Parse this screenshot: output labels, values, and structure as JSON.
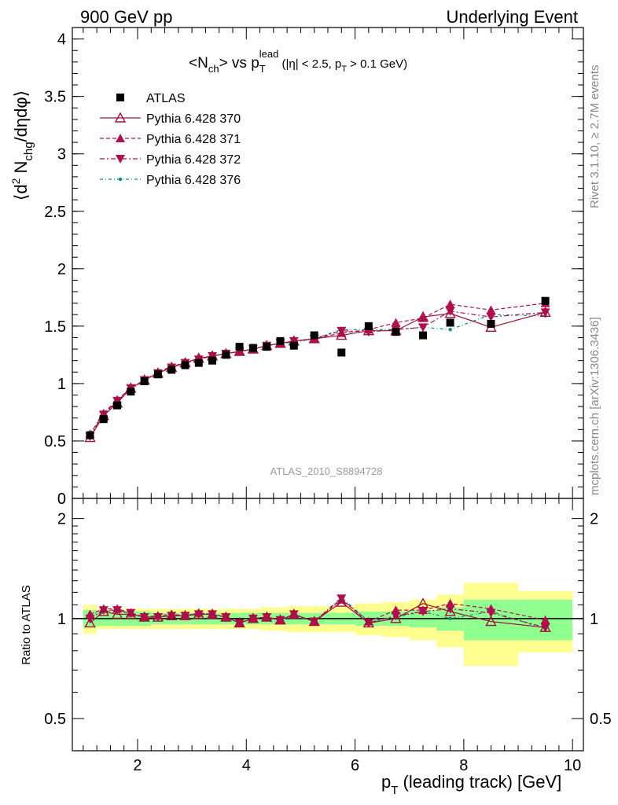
{
  "header": {
    "left": "900 GeV pp",
    "right": "Underlying Event"
  },
  "side_text": {
    "rivet": "Rivet 3.1.10, ≥ 2.7M events",
    "mcplots": "mcplots.cern.ch [arXiv:1306.3436]"
  },
  "watermark": "ATLAS_2010_S8894728",
  "colors": {
    "atlas": "#000000",
    "p370": "#a0103a",
    "p371": "#b01050",
    "p372": "#b01050",
    "p376": "#009080",
    "band_inner": "#90ff90",
    "band_outer": "#ffff90"
  },
  "chart_data": [
    {
      "type": "scatter",
      "title": "<N_ch> vs p_T^lead (|η| < 2.5, p_T > 0.1 GeV)",
      "ylabel": "⟨d² N_chg/dηdφ⟩",
      "xlim": [
        0.8,
        10.2
      ],
      "ylim": [
        0,
        4.1
      ],
      "y_ticks": [
        "0",
        "0.5",
        "1",
        "1.5",
        "2",
        "2.5",
        "3",
        "3.5",
        "4"
      ],
      "x": [
        1.125,
        1.375,
        1.625,
        1.875,
        2.125,
        2.375,
        2.625,
        2.875,
        3.125,
        3.375,
        3.625,
        3.875,
        4.125,
        4.375,
        4.625,
        4.875,
        5.25,
        5.75,
        6.25,
        6.75,
        7.25,
        7.75,
        8.5,
        9.5
      ],
      "legend": [
        "ATLAS",
        "Pythia 6.428 370",
        "Pythia 6.428 371",
        "Pythia 6.428 372",
        "Pythia 6.428 376"
      ],
      "series": [
        {
          "name": "ATLAS",
          "values": [
            0.55,
            0.69,
            0.81,
            0.93,
            1.02,
            1.08,
            1.12,
            1.16,
            1.18,
            1.2,
            1.25,
            1.32,
            1.31,
            1.32,
            1.37,
            1.33,
            1.42,
            1.27,
            1.5,
            1.45,
            1.42,
            1.53,
            1.52,
            1.72
          ]
        },
        {
          "name": "Pythia 6.428 370",
          "values": [
            0.53,
            0.72,
            0.83,
            0.96,
            1.03,
            1.09,
            1.14,
            1.18,
            1.22,
            1.24,
            1.26,
            1.28,
            1.3,
            1.33,
            1.35,
            1.37,
            1.39,
            1.42,
            1.46,
            1.46,
            1.58,
            1.61,
            1.49,
            1.62
          ]
        },
        {
          "name": "Pythia 6.428 371",
          "values": [
            0.56,
            0.74,
            0.86,
            0.96,
            1.03,
            1.1,
            1.15,
            1.18,
            1.22,
            1.24,
            1.26,
            1.28,
            1.3,
            1.33,
            1.35,
            1.37,
            1.39,
            1.44,
            1.47,
            1.53,
            1.57,
            1.69,
            1.64,
            1.7
          ]
        },
        {
          "name": "Pythia 6.428 372",
          "values": [
            0.54,
            0.73,
            0.85,
            0.96,
            1.03,
            1.09,
            1.14,
            1.18,
            1.21,
            1.24,
            1.26,
            1.28,
            1.3,
            1.33,
            1.35,
            1.37,
            1.39,
            1.46,
            1.45,
            1.47,
            1.49,
            1.63,
            1.58,
            1.62
          ]
        },
        {
          "name": "Pythia 6.428 376",
          "values": [
            0.56,
            0.72,
            0.85,
            0.95,
            1.03,
            1.09,
            1.14,
            1.18,
            1.22,
            1.24,
            1.26,
            1.28,
            1.3,
            1.33,
            1.35,
            1.36,
            1.39,
            1.47,
            1.47,
            1.47,
            1.49,
            1.47,
            1.6,
            1.59
          ]
        }
      ]
    },
    {
      "type": "line",
      "ylabel": "Ratio to ATLAS",
      "xlabel": "p_T (leading track) [GeV]",
      "log_y": true,
      "ylim": [
        0.4,
        2.3
      ],
      "y_ticks": [
        "0.5",
        "1",
        "2"
      ],
      "x_ticks": [
        "2",
        "4",
        "6",
        "8",
        "10"
      ],
      "xlim": [
        0.8,
        10.2
      ],
      "bin_edges": [
        1.0,
        1.25,
        1.5,
        1.75,
        2.0,
        2.25,
        2.5,
        2.75,
        3.0,
        3.25,
        3.5,
        3.75,
        4.0,
        4.25,
        4.5,
        4.75,
        5.0,
        5.5,
        6.0,
        6.5,
        7.0,
        7.5,
        8.0,
        9.0,
        10.0
      ],
      "band_inner_halfwidth": [
        0.06,
        0.05,
        0.05,
        0.05,
        0.05,
        0.04,
        0.04,
        0.04,
        0.04,
        0.04,
        0.04,
        0.04,
        0.04,
        0.04,
        0.04,
        0.04,
        0.04,
        0.04,
        0.05,
        0.05,
        0.06,
        0.08,
        0.14,
        0.14
      ],
      "band_outer_halfwidth": [
        0.1,
        0.07,
        0.07,
        0.07,
        0.07,
        0.07,
        0.07,
        0.07,
        0.07,
        0.07,
        0.07,
        0.07,
        0.07,
        0.08,
        0.08,
        0.09,
        0.09,
        0.09,
        0.11,
        0.12,
        0.14,
        0.18,
        0.28,
        0.21
      ],
      "series": [
        {
          "name": "Pythia 6.428 370",
          "values": [
            0.97,
            1.05,
            1.03,
            1.03,
            1.01,
            1.01,
            1.02,
            1.02,
            1.03,
            1.03,
            1.01,
            0.97,
            1.0,
            1.01,
            0.99,
            1.03,
            0.98,
            1.12,
            0.97,
            1.0,
            1.11,
            1.05,
            0.98,
            0.94
          ]
        },
        {
          "name": "Pythia 6.428 371",
          "values": [
            1.03,
            1.07,
            1.07,
            1.04,
            1.01,
            1.02,
            1.03,
            1.02,
            1.04,
            1.03,
            1.01,
            0.97,
            1.0,
            1.01,
            0.99,
            1.03,
            0.98,
            1.14,
            0.98,
            1.06,
            1.06,
            1.11,
            1.07,
            0.99
          ]
        },
        {
          "name": "Pythia 6.428 372",
          "values": [
            1.0,
            1.06,
            1.06,
            1.04,
            1.01,
            1.01,
            1.02,
            1.02,
            1.03,
            1.03,
            1.01,
            0.97,
            1.0,
            1.01,
            0.99,
            1.03,
            0.98,
            1.15,
            0.97,
            1.02,
            1.05,
            1.07,
            1.04,
            0.94
          ]
        },
        {
          "name": "Pythia 6.428 376",
          "values": [
            1.03,
            1.05,
            1.06,
            1.03,
            1.01,
            1.01,
            1.02,
            1.02,
            1.04,
            1.03,
            1.01,
            0.97,
            1.0,
            1.01,
            0.99,
            1.02,
            0.98,
            1.16,
            0.98,
            1.01,
            1.05,
            1.0,
            1.05,
            0.93
          ]
        }
      ]
    }
  ]
}
